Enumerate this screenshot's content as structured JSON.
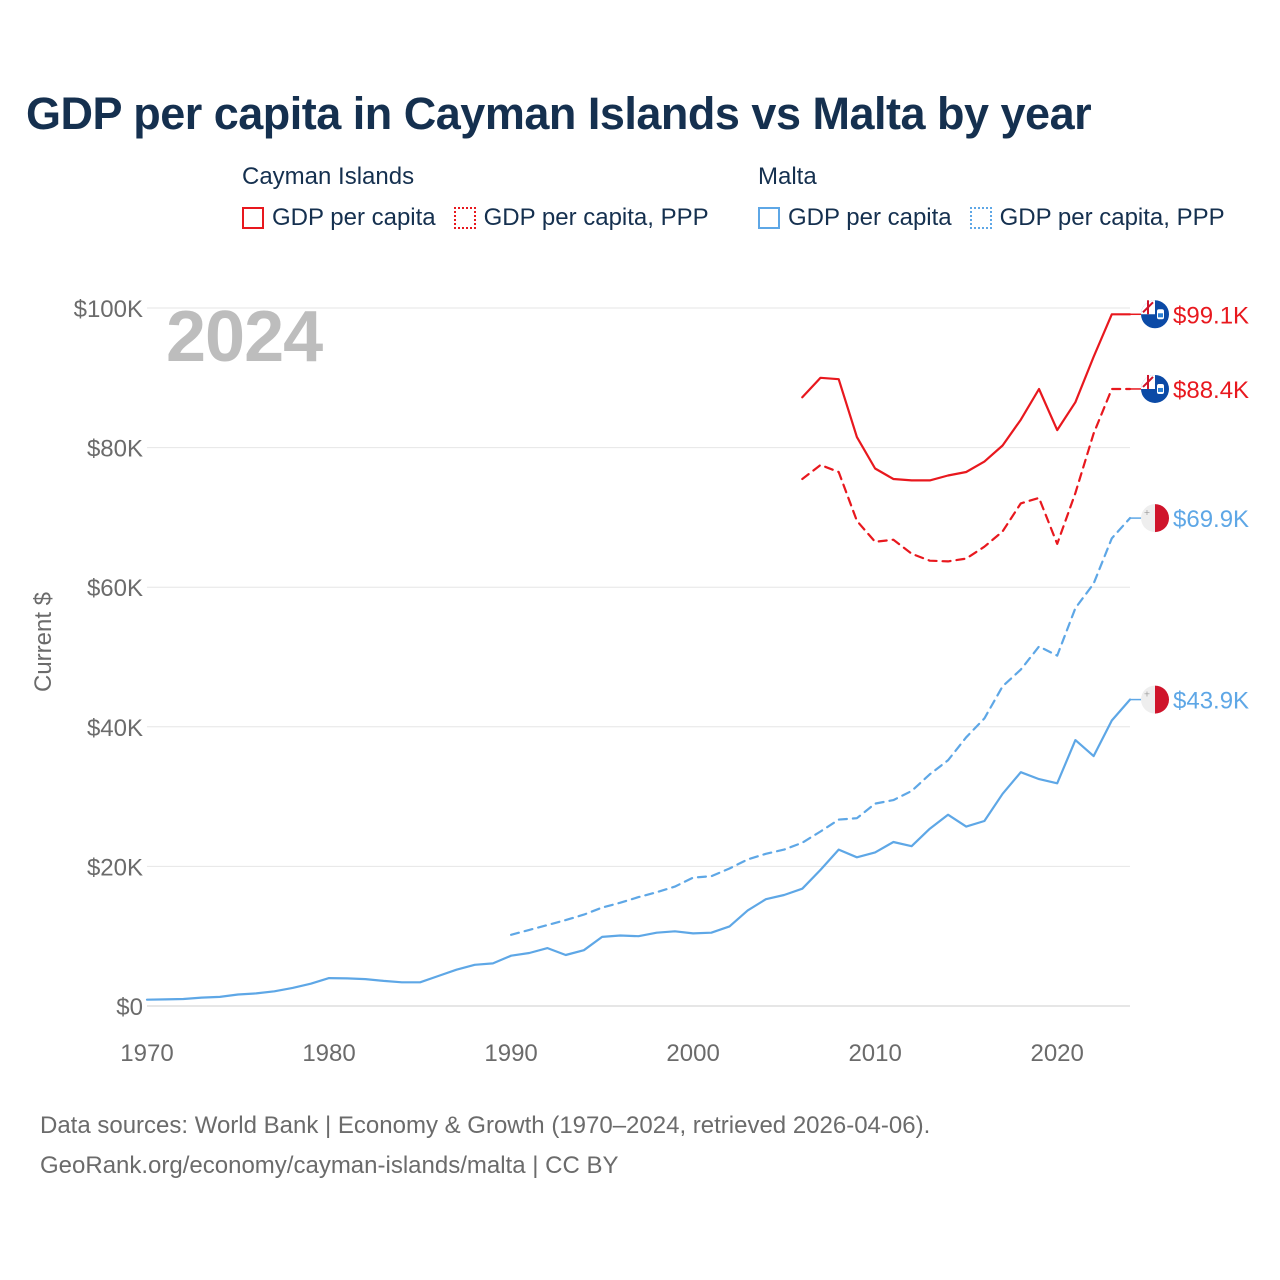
{
  "title": "GDP per capita in Cayman Islands vs Malta by year",
  "legend": [
    {
      "group": "Cayman Islands",
      "color": "#e8181e",
      "items": [
        {
          "label": "GDP per capita",
          "style": "solid"
        },
        {
          "label": "GDP per capita, PPP",
          "style": "dotted"
        }
      ]
    },
    {
      "group": "Malta",
      "color": "#5ea7e6",
      "items": [
        {
          "label": "GDP per capita",
          "style": "solid"
        },
        {
          "label": "GDP per capita, PPP",
          "style": "dotted"
        }
      ]
    }
  ],
  "current_year": "2024",
  "chart_data": {
    "type": "line",
    "ylabel": "Current $",
    "xlabel": "",
    "xlim": [
      1970,
      2024
    ],
    "ylim": [
      0,
      100000
    ],
    "x_ticks": [
      1970,
      1980,
      1990,
      2000,
      2010,
      2020
    ],
    "x_tick_labels": [
      "1970",
      "1980",
      "1990",
      "2000",
      "2010",
      "2020"
    ],
    "y_ticks": [
      0,
      20000,
      40000,
      60000,
      80000,
      100000
    ],
    "y_tick_labels": [
      "$0",
      "$20K",
      "$40K",
      "$60K",
      "$80K",
      "$100K"
    ],
    "series": [
      {
        "name": "Cayman Islands GDP per capita",
        "country": "Cayman Islands",
        "color": "#e8181e",
        "dash": "solid",
        "end_label": "$99.1K",
        "flag": "cayman-flag-icon",
        "x": [
          2006,
          2007,
          2008,
          2009,
          2010,
          2011,
          2012,
          2013,
          2014,
          2015,
          2016,
          2017,
          2018,
          2019,
          2020,
          2021,
          2022,
          2023,
          2024
        ],
        "values": [
          87200,
          90000,
          89800,
          81500,
          77000,
          75500,
          75300,
          75300,
          76000,
          76500,
          78000,
          80300,
          84000,
          88400,
          82500,
          86500,
          93000,
          99100,
          99100
        ]
      },
      {
        "name": "Cayman Islands GDP per capita, PPP",
        "country": "Cayman Islands",
        "color": "#e8181e",
        "dash": "dashed",
        "end_label": "$88.4K",
        "flag": "cayman-flag-icon",
        "x": [
          2006,
          2007,
          2008,
          2009,
          2010,
          2011,
          2012,
          2013,
          2014,
          2015,
          2016,
          2017,
          2018,
          2019,
          2020,
          2021,
          2022,
          2023,
          2024
        ],
        "values": [
          75500,
          77500,
          76500,
          69500,
          66500,
          66800,
          64800,
          63800,
          63700,
          64100,
          65800,
          68000,
          72000,
          72800,
          66200,
          73500,
          82000,
          88400,
          88400
        ]
      },
      {
        "name": "Malta GDP per capita, PPP",
        "country": "Malta",
        "color": "#5ea7e6",
        "dash": "dashed",
        "end_label": "$69.9K",
        "flag": "malta-flag-icon",
        "x": [
          1990,
          1991,
          1992,
          1993,
          1994,
          1995,
          1996,
          1997,
          1998,
          1999,
          2000,
          2001,
          2002,
          2003,
          2004,
          2005,
          2006,
          2007,
          2008,
          2009,
          2010,
          2011,
          2012,
          2013,
          2014,
          2015,
          2016,
          2017,
          2018,
          2019,
          2020,
          2021,
          2022,
          2023,
          2024
        ],
        "values": [
          10200,
          10900,
          11600,
          12300,
          13100,
          14100,
          14800,
          15600,
          16300,
          17100,
          18400,
          18600,
          19700,
          21000,
          21800,
          22400,
          23400,
          25000,
          26700,
          26900,
          29000,
          29500,
          30800,
          33200,
          35200,
          38500,
          41200,
          45800,
          48200,
          51500,
          50200,
          57000,
          60500,
          67000,
          69900
        ]
      },
      {
        "name": "Malta GDP per capita",
        "country": "Malta",
        "color": "#5ea7e6",
        "dash": "solid",
        "end_label": "$43.9K",
        "flag": "malta-flag-icon",
        "x": [
          1970,
          1971,
          1972,
          1973,
          1974,
          1975,
          1976,
          1977,
          1978,
          1979,
          1980,
          1981,
          1982,
          1983,
          1984,
          1985,
          1986,
          1987,
          1988,
          1989,
          1990,
          1991,
          1992,
          1993,
          1994,
          1995,
          1996,
          1997,
          1998,
          1999,
          2000,
          2001,
          2002,
          2003,
          2004,
          2005,
          2006,
          2007,
          2008,
          2009,
          2010,
          2011,
          2012,
          2013,
          2014,
          2015,
          2016,
          2017,
          2018,
          2019,
          2020,
          2021,
          2022,
          2023,
          2024
        ],
        "values": [
          900,
          950,
          1000,
          1200,
          1300,
          1650,
          1800,
          2100,
          2600,
          3200,
          4000,
          3950,
          3850,
          3600,
          3400,
          3400,
          4300,
          5200,
          5900,
          6100,
          7200,
          7600,
          8300,
          7300,
          8000,
          9900,
          10100,
          10000,
          10500,
          10700,
          10400,
          10500,
          11400,
          13700,
          15300,
          15900,
          16800,
          19500,
          22400,
          21300,
          22000,
          23500,
          22900,
          25400,
          27400,
          25700,
          26500,
          30400,
          33500,
          32500,
          31900,
          38100,
          35800,
          40900,
          43900
        ]
      }
    ]
  },
  "footer": {
    "line1": "Data sources: World Bank | Economy & Growth (1970–2024, retrieved 2026-04-06).",
    "line2": "GeoRank.org/economy/cayman-islands/malta | CC BY"
  }
}
